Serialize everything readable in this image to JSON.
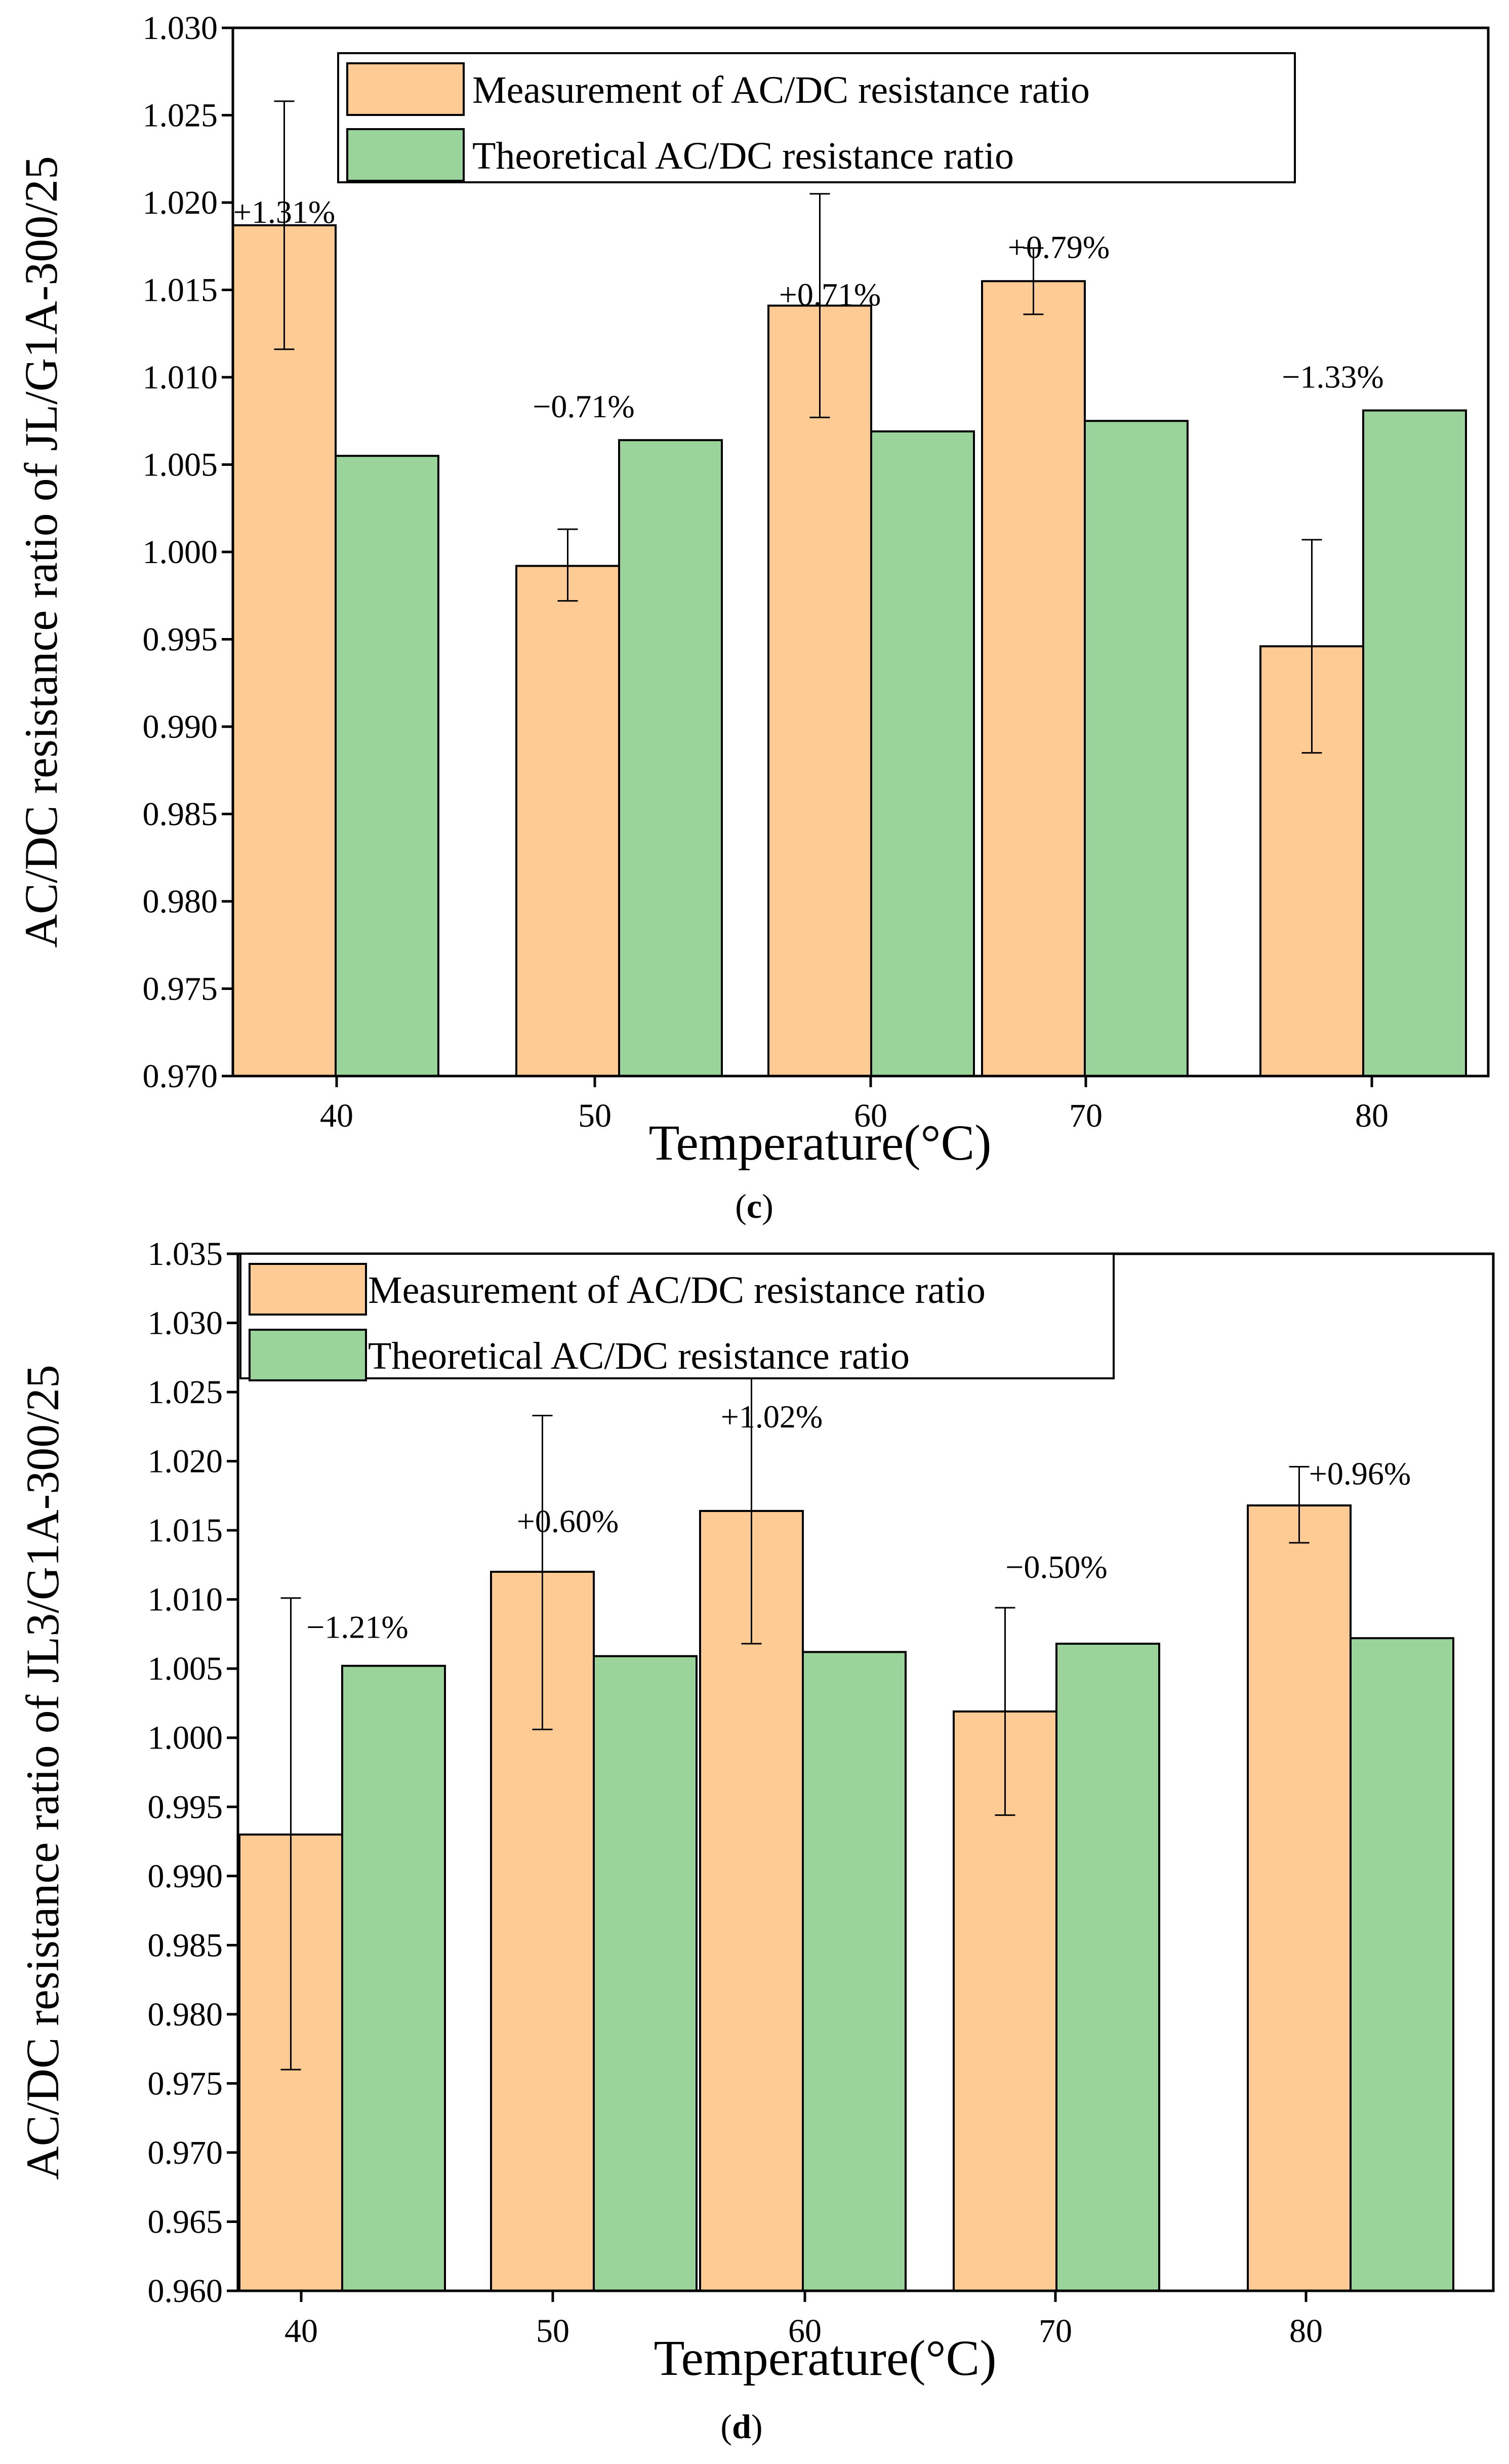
{
  "chart_data": [
    {
      "type": "bar",
      "panel": "c",
      "caption_open": "(",
      "caption_letter": "c",
      "caption_close": ")",
      "xlabel": "Temperature(°C)",
      "ylabel": "AC/DC resistance ratio of JL/G1A-300/25",
      "categories": [
        "40",
        "50",
        "60",
        "70",
        "80"
      ],
      "ylim": [
        0.97,
        1.03
      ],
      "yticks": [
        "0.970",
        "0.975",
        "0.980",
        "0.985",
        "0.990",
        "0.995",
        "1.000",
        "1.005",
        "1.010",
        "1.015",
        "1.020",
        "1.025",
        "1.030"
      ],
      "legend_position": "top-center",
      "series": [
        {
          "name": "Measurement of AC/DC resistance ratio",
          "color": "#FDCB93",
          "values": [
            1.0187,
            0.9992,
            1.0141,
            1.0155,
            0.9946
          ],
          "err_low": [
            1.0116,
            0.9972,
            1.0077,
            1.0136,
            0.9885
          ],
          "err_high": [
            1.0258,
            1.0013,
            1.0205,
            1.0174,
            1.0007
          ]
        },
        {
          "name": "Theoretical AC/DC resistance ratio",
          "color": "#9AD49A",
          "values": [
            1.0055,
            1.0064,
            1.0069,
            1.0075,
            1.0081
          ]
        }
      ],
      "annotations": [
        "+1.31%",
        "−0.71%",
        "+0.71%",
        "+0.79%",
        "−1.33%"
      ]
    },
    {
      "type": "bar",
      "panel": "d",
      "caption_open": "(",
      "caption_letter": "d",
      "caption_close": ")",
      "xlabel": "Temperature(°C)",
      "ylabel": "AC/DC resistance ratio of JL3/G1A-300/25",
      "categories": [
        "40",
        "50",
        "60",
        "70",
        "80"
      ],
      "ylim": [
        0.96,
        1.035
      ],
      "yticks": [
        "0.960",
        "0.965",
        "0.970",
        "0.975",
        "0.980",
        "0.985",
        "0.990",
        "0.995",
        "1.000",
        "1.005",
        "1.010",
        "1.015",
        "1.020",
        "1.025",
        "1.030",
        "1.035"
      ],
      "legend_position": "top-center",
      "series": [
        {
          "name": "Measurement of AC/DC resistance ratio",
          "color": "#FDCB93",
          "values": [
            0.993,
            1.012,
            1.0164,
            1.0019,
            1.0168
          ],
          "err_low": [
            0.976,
            1.0006,
            1.0068,
            0.9944,
            1.0141
          ],
          "err_high": [
            1.0101,
            1.0233,
            1.0261,
            1.0094,
            1.0196
          ]
        },
        {
          "name": "Theoretical AC/DC resistance ratio",
          "color": "#9AD49A",
          "values": [
            1.0052,
            1.0059,
            1.0062,
            1.0068,
            1.0072
          ]
        }
      ],
      "annotations": [
        "−1.21%",
        "+0.60%",
        "+1.02%",
        "−0.50%",
        "+0.96%"
      ]
    }
  ]
}
